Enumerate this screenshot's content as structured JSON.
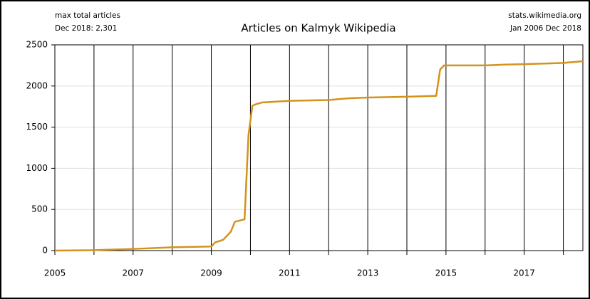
{
  "chart_data": {
    "type": "line",
    "title": "Articles on Kalmyk Wikipedia",
    "annotations": [
      "max total articles",
      "Dec 2018: 2,301",
      "stats.wikimedia.org",
      "Jan 2006 Dec 2018"
    ],
    "x": [
      2005.0,
      2006.0,
      2007.0,
      2008.0,
      2009.0,
      2009.1,
      2009.3,
      2009.5,
      2009.6,
      2009.85,
      2009.95,
      2010.05,
      2010.15,
      2010.3,
      2011.0,
      2012.0,
      2012.5,
      2013.0,
      2014.0,
      2014.75,
      2014.85,
      2014.95,
      2016.0,
      2016.5,
      2017.0,
      2018.0,
      2018.5
    ],
    "values": [
      0,
      5,
      20,
      40,
      50,
      100,
      130,
      230,
      350,
      380,
      1400,
      1760,
      1780,
      1800,
      1820,
      1830,
      1850,
      1860,
      1870,
      1880,
      2200,
      2250,
      2250,
      2260,
      2265,
      2280,
      2301
    ],
    "color": "#d4921a",
    "xlim": [
      2005,
      2018.5
    ],
    "xticks": [
      2005,
      2007,
      2009,
      2011,
      2013,
      2015,
      2017
    ],
    "xminor": [
      2006,
      2008,
      2010,
      2012,
      2014,
      2016,
      2018
    ],
    "ylim": [
      0,
      2500
    ],
    "yticks": [
      0,
      500,
      1000,
      1500,
      2000,
      2500
    ],
    "grid": true
  }
}
